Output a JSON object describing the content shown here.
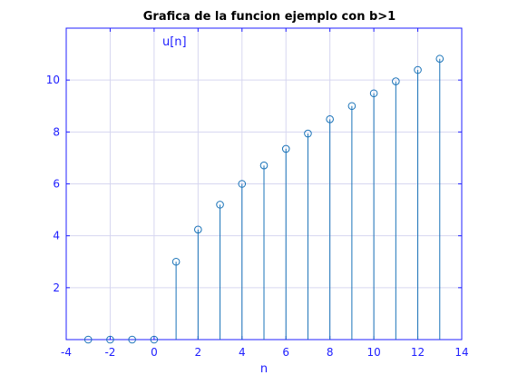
{
  "chart_data": {
    "type": "stem",
    "title": "Grafica de la funcion ejemplo con b>1",
    "xlabel": "n",
    "ylabel": "",
    "annotation": "u[n]",
    "xlim": [
      -4,
      14
    ],
    "ylim": [
      0,
      12
    ],
    "xticks": [
      -4,
      -2,
      0,
      2,
      4,
      6,
      8,
      10,
      12,
      14
    ],
    "xtick_labels": [
      "-4",
      "-2",
      "0",
      "2",
      "4",
      "6",
      "8",
      "10",
      "12",
      "14"
    ],
    "yticks": [
      2,
      4,
      6,
      8,
      10
    ],
    "ytick_labels": [
      "2",
      "4",
      "6",
      "8",
      "10"
    ],
    "grid": true,
    "marker": "circle",
    "series": [
      {
        "x": [
          -3,
          -2,
          -1,
          0,
          1,
          2,
          3,
          4,
          5,
          6,
          7,
          8,
          9,
          10,
          11,
          12,
          13
        ],
        "values": [
          0,
          0,
          0,
          0,
          3.0,
          4.24,
          5.2,
          6.0,
          6.71,
          7.35,
          7.94,
          8.49,
          9.0,
          9.49,
          9.95,
          10.39,
          10.82
        ]
      }
    ],
    "colors": {
      "axes": "#2020ff",
      "stem": "#1a73b8",
      "grid": "#d6d6f0",
      "title": "#000000"
    }
  }
}
